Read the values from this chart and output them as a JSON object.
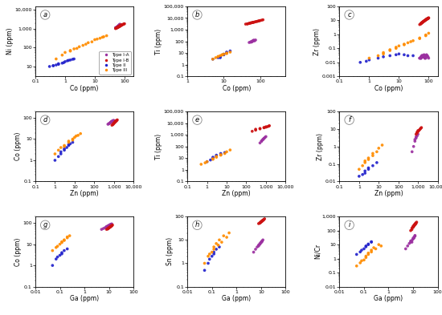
{
  "type_colors": {
    "Type I-A": "#9b30a0",
    "Type I-B": "#cc1111",
    "Type II": "#2222cc",
    "Type III": "#ff8c00"
  },
  "subplot_labels": [
    "a",
    "b",
    "c",
    "d",
    "e",
    "f",
    "g",
    "h",
    "i"
  ],
  "panels": [
    {
      "xlabel": "Co (ppm)",
      "ylabel": "Ni (ppm)",
      "xlim": [
        0.1,
        200
      ],
      "ylim": [
        3,
        15000
      ]
    },
    {
      "xlabel": "Co (ppm)",
      "ylabel": "Ti (ppm)",
      "xlim": [
        1,
        500
      ],
      "ylim": [
        0.1,
        100000
      ]
    },
    {
      "xlabel": "Co (ppm)",
      "ylabel": "Zr (ppm)",
      "xlim": [
        0.1,
        200
      ],
      "ylim": [
        0.001,
        100
      ]
    },
    {
      "xlabel": "Zn (ppm)",
      "ylabel": "Co (ppm)",
      "xlim": [
        0.1,
        10000
      ],
      "ylim": [
        0.1,
        200
      ]
    },
    {
      "xlabel": "Zn (ppm)",
      "ylabel": "Ti (ppm)",
      "xlim": [
        0.1,
        10000
      ],
      "ylim": [
        0.1,
        100000
      ]
    },
    {
      "xlabel": "Zn (ppm)",
      "ylabel": "Zr (ppm)",
      "xlim": [
        0.1,
        10000
      ],
      "ylim": [
        0.01,
        100
      ]
    },
    {
      "xlabel": "Ga (ppm)",
      "ylabel": "Co (ppm)",
      "xlim": [
        0.01,
        100
      ],
      "ylim": [
        0.1,
        200
      ]
    },
    {
      "xlabel": "Ga (ppm)",
      "ylabel": "Sn (ppm)",
      "xlim": [
        0.01,
        100
      ],
      "ylim": [
        0.1,
        100
      ]
    },
    {
      "xlabel": "Ga (ppm)",
      "ylabel": "Ni/Cr",
      "xlim": [
        0.01,
        100
      ],
      "ylim": [
        0.01,
        1000
      ]
    }
  ],
  "data": {
    "Type I-A": {
      "Co_Ni": {
        "x": [
          50,
          52,
          55,
          58,
          60,
          62,
          55,
          58,
          60,
          62,
          65,
          62,
          60,
          58,
          65,
          68,
          62,
          58,
          55,
          60,
          63,
          67,
          70,
          65,
          62,
          60,
          58,
          55,
          52,
          50
        ],
        "y": [
          1100,
          1150,
          1200,
          1250,
          1300,
          1350,
          1150,
          1200,
          1250,
          1300,
          1400,
          1300,
          1200,
          1180,
          1500,
          1600,
          1350,
          1250,
          1150,
          1300,
          1400,
          1550,
          1700,
          1450,
          1350,
          1250,
          1180,
          1120,
          1060,
          1080
        ]
      },
      "Co_Ti": {
        "x": [
          50,
          55,
          60,
          65,
          55,
          60,
          62,
          58,
          65,
          68,
          70,
          75
        ],
        "y": [
          80,
          90,
          100,
          120,
          85,
          95,
          105,
          88,
          115,
          125,
          110,
          130
        ]
      },
      "Co_Zr": {
        "x": [
          50,
          55,
          60,
          65,
          70,
          75,
          80,
          55,
          60,
          65,
          70,
          75,
          50,
          55,
          60,
          65,
          70,
          75,
          80,
          85,
          90,
          95,
          100,
          55,
          60,
          65,
          70,
          75,
          80,
          85
        ],
        "y": [
          0.02,
          0.02,
          0.03,
          0.025,
          0.03,
          0.02,
          0.025,
          0.02,
          0.03,
          0.025,
          0.035,
          0.02,
          0.02,
          0.025,
          0.03,
          0.025,
          0.03,
          0.025,
          0.02,
          0.035,
          0.03,
          0.025,
          0.02,
          0.02,
          0.025,
          0.03,
          0.025,
          0.03,
          0.025,
          0.03
        ]
      },
      "Zn_Co": {
        "x": [
          500,
          550,
          600,
          650,
          700,
          750,
          800,
          850,
          900,
          950,
          1000,
          600,
          700,
          800,
          900
        ],
        "y": [
          50,
          52,
          55,
          58,
          62,
          65,
          68,
          70,
          72,
          74,
          75,
          56,
          63,
          68,
          73
        ]
      },
      "Zn_Ti": {
        "x": [
          500,
          600,
          700,
          800,
          900,
          1000,
          600,
          700,
          800
        ],
        "y": [
          200,
          300,
          400,
          500,
          600,
          700,
          280,
          380,
          480
        ]
      },
      "Zn_Zr": {
        "x": [
          500,
          600,
          700,
          800,
          900,
          1000,
          700,
          800
        ],
        "y": [
          0.5,
          1.0,
          2.0,
          3.0,
          4.0,
          5.0,
          2.5,
          3.5
        ]
      },
      "Ga_Co": {
        "x": [
          5,
          6,
          7,
          8,
          9,
          10,
          11,
          12,
          8,
          9,
          10,
          11,
          12,
          13
        ],
        "y": [
          50,
          55,
          60,
          65,
          70,
          75,
          80,
          85,
          68,
          72,
          78,
          82,
          87,
          90
        ]
      },
      "Ga_Sn": {
        "x": [
          5,
          6,
          7,
          8,
          9,
          10,
          11,
          12,
          8,
          9,
          10,
          11
        ],
        "y": [
          3,
          4,
          5,
          6,
          7,
          8,
          9,
          10,
          5.5,
          6.5,
          7.5,
          8.5
        ]
      },
      "Ga_NiCr": {
        "x": [
          5,
          6,
          7,
          8,
          9,
          10,
          11,
          12,
          8,
          9,
          10,
          11,
          12
        ],
        "y": [
          5,
          8,
          12,
          18,
          15,
          25,
          30,
          40,
          15,
          20,
          28,
          35,
          45
        ]
      }
    },
    "Type I-B": {
      "Co_Ni": {
        "x": [
          50,
          52,
          55,
          58,
          60,
          62,
          65,
          68,
          70,
          72,
          75,
          78,
          80,
          55,
          60,
          65,
          70,
          75,
          80,
          85,
          90,
          95,
          100,
          55,
          60,
          65,
          70,
          75
        ],
        "y": [
          1000,
          1050,
          1100,
          1150,
          1200,
          1250,
          1300,
          1350,
          1400,
          1450,
          1500,
          1550,
          1600,
          1080,
          1150,
          1230,
          1320,
          1420,
          1520,
          1600,
          1680,
          1750,
          1800,
          1120,
          1200,
          1280,
          1380,
          1480
        ]
      },
      "Co_Ti": {
        "x": [
          40,
          45,
          50,
          55,
          60,
          65,
          70,
          75,
          80,
          85,
          90,
          95,
          100,
          110,
          120,
          45,
          50,
          55,
          60,
          65
        ],
        "y": [
          3000,
          3200,
          3500,
          3800,
          4000,
          4200,
          4500,
          4800,
          5000,
          5200,
          5500,
          5800,
          6000,
          6500,
          7000,
          3100,
          3400,
          3700,
          4000,
          4300
        ]
      },
      "Co_Zr": {
        "x": [
          50,
          55,
          60,
          65,
          70,
          75,
          80,
          85,
          90,
          95,
          100,
          55,
          60,
          65,
          70,
          75,
          80,
          85,
          90,
          95,
          100,
          55,
          60,
          65,
          70,
          75,
          80,
          85,
          90,
          95
        ],
        "y": [
          5,
          6,
          7,
          8,
          9,
          10,
          11,
          12,
          13,
          14,
          15,
          5.5,
          6.5,
          7.5,
          8.5,
          9.5,
          10.5,
          11.5,
          12.5,
          13.5,
          14.5,
          6,
          7,
          8,
          9,
          10,
          11,
          12,
          13,
          14
        ]
      },
      "Zn_Co": {
        "x": [
          800,
          900,
          1000,
          1100,
          1200,
          1300,
          1400,
          1500,
          900,
          1000,
          1100,
          1200,
          1300
        ],
        "y": [
          45,
          50,
          55,
          60,
          65,
          70,
          75,
          80,
          48,
          55,
          62,
          68,
          73
        ]
      },
      "Zn_Ti": {
        "x": [
          200,
          300,
          500,
          800,
          1000,
          1200,
          1400,
          1500,
          300,
          500,
          800,
          1000
        ],
        "y": [
          2000,
          3000,
          3500,
          4000,
          4500,
          5000,
          5500,
          6000,
          2500,
          3200,
          4200,
          4800
        ]
      },
      "Zn_Zr": {
        "x": [
          800,
          900,
          1000,
          1100,
          1200,
          1300,
          1400,
          1500,
          900,
          1000
        ],
        "y": [
          5,
          6,
          7,
          8,
          9,
          10,
          11,
          12,
          6.5,
          8
        ]
      },
      "Ga_Co": {
        "x": [
          8,
          9,
          10,
          11,
          12,
          13,
          14,
          10,
          11,
          12,
          13,
          9,
          10,
          11
        ],
        "y": [
          50,
          55,
          60,
          65,
          70,
          75,
          80,
          58,
          63,
          68,
          73,
          52,
          58,
          64
        ]
      },
      "Ga_Sn": {
        "x": [
          8,
          9,
          10,
          11,
          12,
          13,
          14,
          10,
          11,
          12,
          13,
          9,
          10,
          11,
          12
        ],
        "y": [
          50,
          55,
          60,
          65,
          70,
          75,
          80,
          58,
          63,
          68,
          73,
          52,
          58,
          64,
          70
        ]
      },
      "Ga_NiCr": {
        "x": [
          8,
          9,
          10,
          11,
          12,
          13,
          14,
          10,
          11,
          12,
          13,
          9,
          10,
          11,
          12,
          13
        ],
        "y": [
          100,
          150,
          200,
          250,
          300,
          350,
          400,
          180,
          220,
          270,
          320,
          120,
          170,
          215,
          265,
          315
        ]
      }
    },
    "Type II": {
      "Co_Ni": {
        "x": [
          0.3,
          0.4,
          0.5,
          0.6,
          0.8,
          1.0,
          1.2,
          1.5,
          2.0,
          0.4,
          0.6,
          0.9,
          1.3,
          1.8
        ],
        "y": [
          10,
          11,
          12,
          13,
          15,
          18,
          20,
          22,
          25,
          11,
          14,
          16,
          21,
          24
        ]
      },
      "Co_Ti": {
        "x": [
          5,
          7,
          8,
          10,
          12,
          15,
          8,
          10,
          12
        ],
        "y": [
          3,
          4,
          5,
          8,
          10,
          15,
          4,
          7,
          12
        ]
      },
      "Co_Zr": {
        "x": [
          0.5,
          0.8,
          1,
          2,
          3,
          5,
          8,
          10,
          15,
          20,
          30
        ],
        "y": [
          0.01,
          0.012,
          0.015,
          0.02,
          0.025,
          0.03,
          0.035,
          0.04,
          0.035,
          0.03,
          0.03
        ]
      },
      "Zn_Co": {
        "x": [
          1,
          1.5,
          2,
          3,
          4,
          5,
          6,
          8,
          2,
          3,
          5
        ],
        "y": [
          1,
          1.5,
          2,
          3,
          4,
          5,
          6,
          7,
          2.5,
          3.5,
          5.5
        ]
      },
      "Zn_Ti": {
        "x": [
          1,
          1.5,
          2,
          3,
          5,
          8,
          2,
          3,
          5
        ],
        "y": [
          5,
          7,
          10,
          15,
          20,
          30,
          12,
          18,
          25
        ]
      },
      "Zn_Zr": {
        "x": [
          1,
          1.5,
          2,
          3,
          5,
          8,
          2,
          3
        ],
        "y": [
          0.02,
          0.025,
          0.03,
          0.05,
          0.08,
          0.12,
          0.04,
          0.06
        ]
      },
      "Ga_Co": {
        "x": [
          0.05,
          0.07,
          0.1,
          0.12,
          0.15,
          0.2,
          0.08,
          0.12
        ],
        "y": [
          1,
          2,
          3,
          4,
          5,
          6,
          2.5,
          3.5
        ]
      },
      "Ga_Sn": {
        "x": [
          0.05,
          0.07,
          0.1,
          0.12,
          0.15,
          0.2,
          0.08,
          0.12
        ],
        "y": [
          0.5,
          1,
          2,
          3,
          4,
          5,
          1.5,
          2.5
        ]
      },
      "Ga_NiCr": {
        "x": [
          0.05,
          0.07,
          0.1,
          0.12,
          0.15,
          0.2,
          0.08,
          0.12,
          0.15,
          0.2
        ],
        "y": [
          2,
          3,
          5,
          8,
          10,
          15,
          4,
          7,
          11,
          16
        ]
      }
    },
    "Type III": {
      "Co_Ni": {
        "x": [
          0.5,
          0.8,
          1,
          1.5,
          2,
          3,
          5,
          8,
          10,
          15,
          20,
          25,
          1.5,
          2.5,
          4,
          6,
          12,
          18
        ],
        "y": [
          25,
          40,
          55,
          70,
          85,
          110,
          150,
          200,
          260,
          310,
          370,
          420,
          65,
          90,
          130,
          180,
          280,
          350
        ]
      },
      "Co_Ti": {
        "x": [
          5,
          6,
          7,
          8,
          9,
          10,
          12,
          15,
          7,
          9,
          12
        ],
        "y": [
          3,
          4,
          5,
          6,
          7,
          8,
          10,
          12,
          5,
          7,
          9
        ]
      },
      "Co_Zr": {
        "x": [
          1,
          2,
          3,
          5,
          8,
          10,
          15,
          20,
          30,
          50,
          80,
          100,
          3,
          5,
          8,
          15,
          25,
          50,
          80
        ],
        "y": [
          0.02,
          0.03,
          0.05,
          0.08,
          0.12,
          0.15,
          0.2,
          0.25,
          0.35,
          0.5,
          0.8,
          1.2,
          0.04,
          0.07,
          0.1,
          0.18,
          0.3,
          0.55,
          0.9
        ]
      },
      "Zn_Co": {
        "x": [
          1,
          1.5,
          2,
          3,
          5,
          8,
          10,
          15,
          20,
          3,
          5,
          8,
          12
        ],
        "y": [
          2,
          3,
          4,
          5,
          8,
          10,
          12,
          15,
          18,
          4.5,
          7,
          9,
          14
        ]
      },
      "Zn_Ti": {
        "x": [
          0.5,
          0.8,
          1,
          2,
          3,
          5,
          8,
          10,
          15,
          2,
          3,
          5
        ],
        "y": [
          3,
          4,
          5,
          8,
          12,
          18,
          25,
          35,
          50,
          9,
          14,
          20
        ]
      },
      "Zn_Zr": {
        "x": [
          1,
          1.5,
          2,
          3,
          5,
          8,
          10,
          15,
          2,
          3,
          5
        ],
        "y": [
          0.05,
          0.08,
          0.12,
          0.18,
          0.3,
          0.5,
          0.8,
          1.2,
          0.15,
          0.22,
          0.4
        ]
      },
      "Ga_Co": {
        "x": [
          0.05,
          0.07,
          0.1,
          0.12,
          0.15,
          0.2,
          0.08,
          0.12,
          0.15,
          0.2,
          0.25
        ],
        "y": [
          5,
          7,
          10,
          12,
          15,
          20,
          8,
          13,
          16,
          22,
          25
        ]
      },
      "Ga_Sn": {
        "x": [
          0.05,
          0.07,
          0.1,
          0.12,
          0.15,
          0.2,
          0.3,
          0.5,
          0.08,
          0.12,
          0.18,
          0.25,
          0.4
        ],
        "y": [
          1,
          2,
          3,
          5,
          7,
          10,
          15,
          20,
          2.5,
          4,
          6,
          8,
          13
        ]
      },
      "Ga_NiCr": {
        "x": [
          0.05,
          0.07,
          0.1,
          0.12,
          0.15,
          0.2,
          0.3,
          0.5,
          0.08,
          0.12,
          0.15,
          0.2,
          0.25,
          0.4
        ],
        "y": [
          0.3,
          0.5,
          0.8,
          1.2,
          2,
          3,
          5,
          8,
          0.7,
          1.5,
          2.5,
          4,
          6,
          10
        ]
      }
    }
  }
}
